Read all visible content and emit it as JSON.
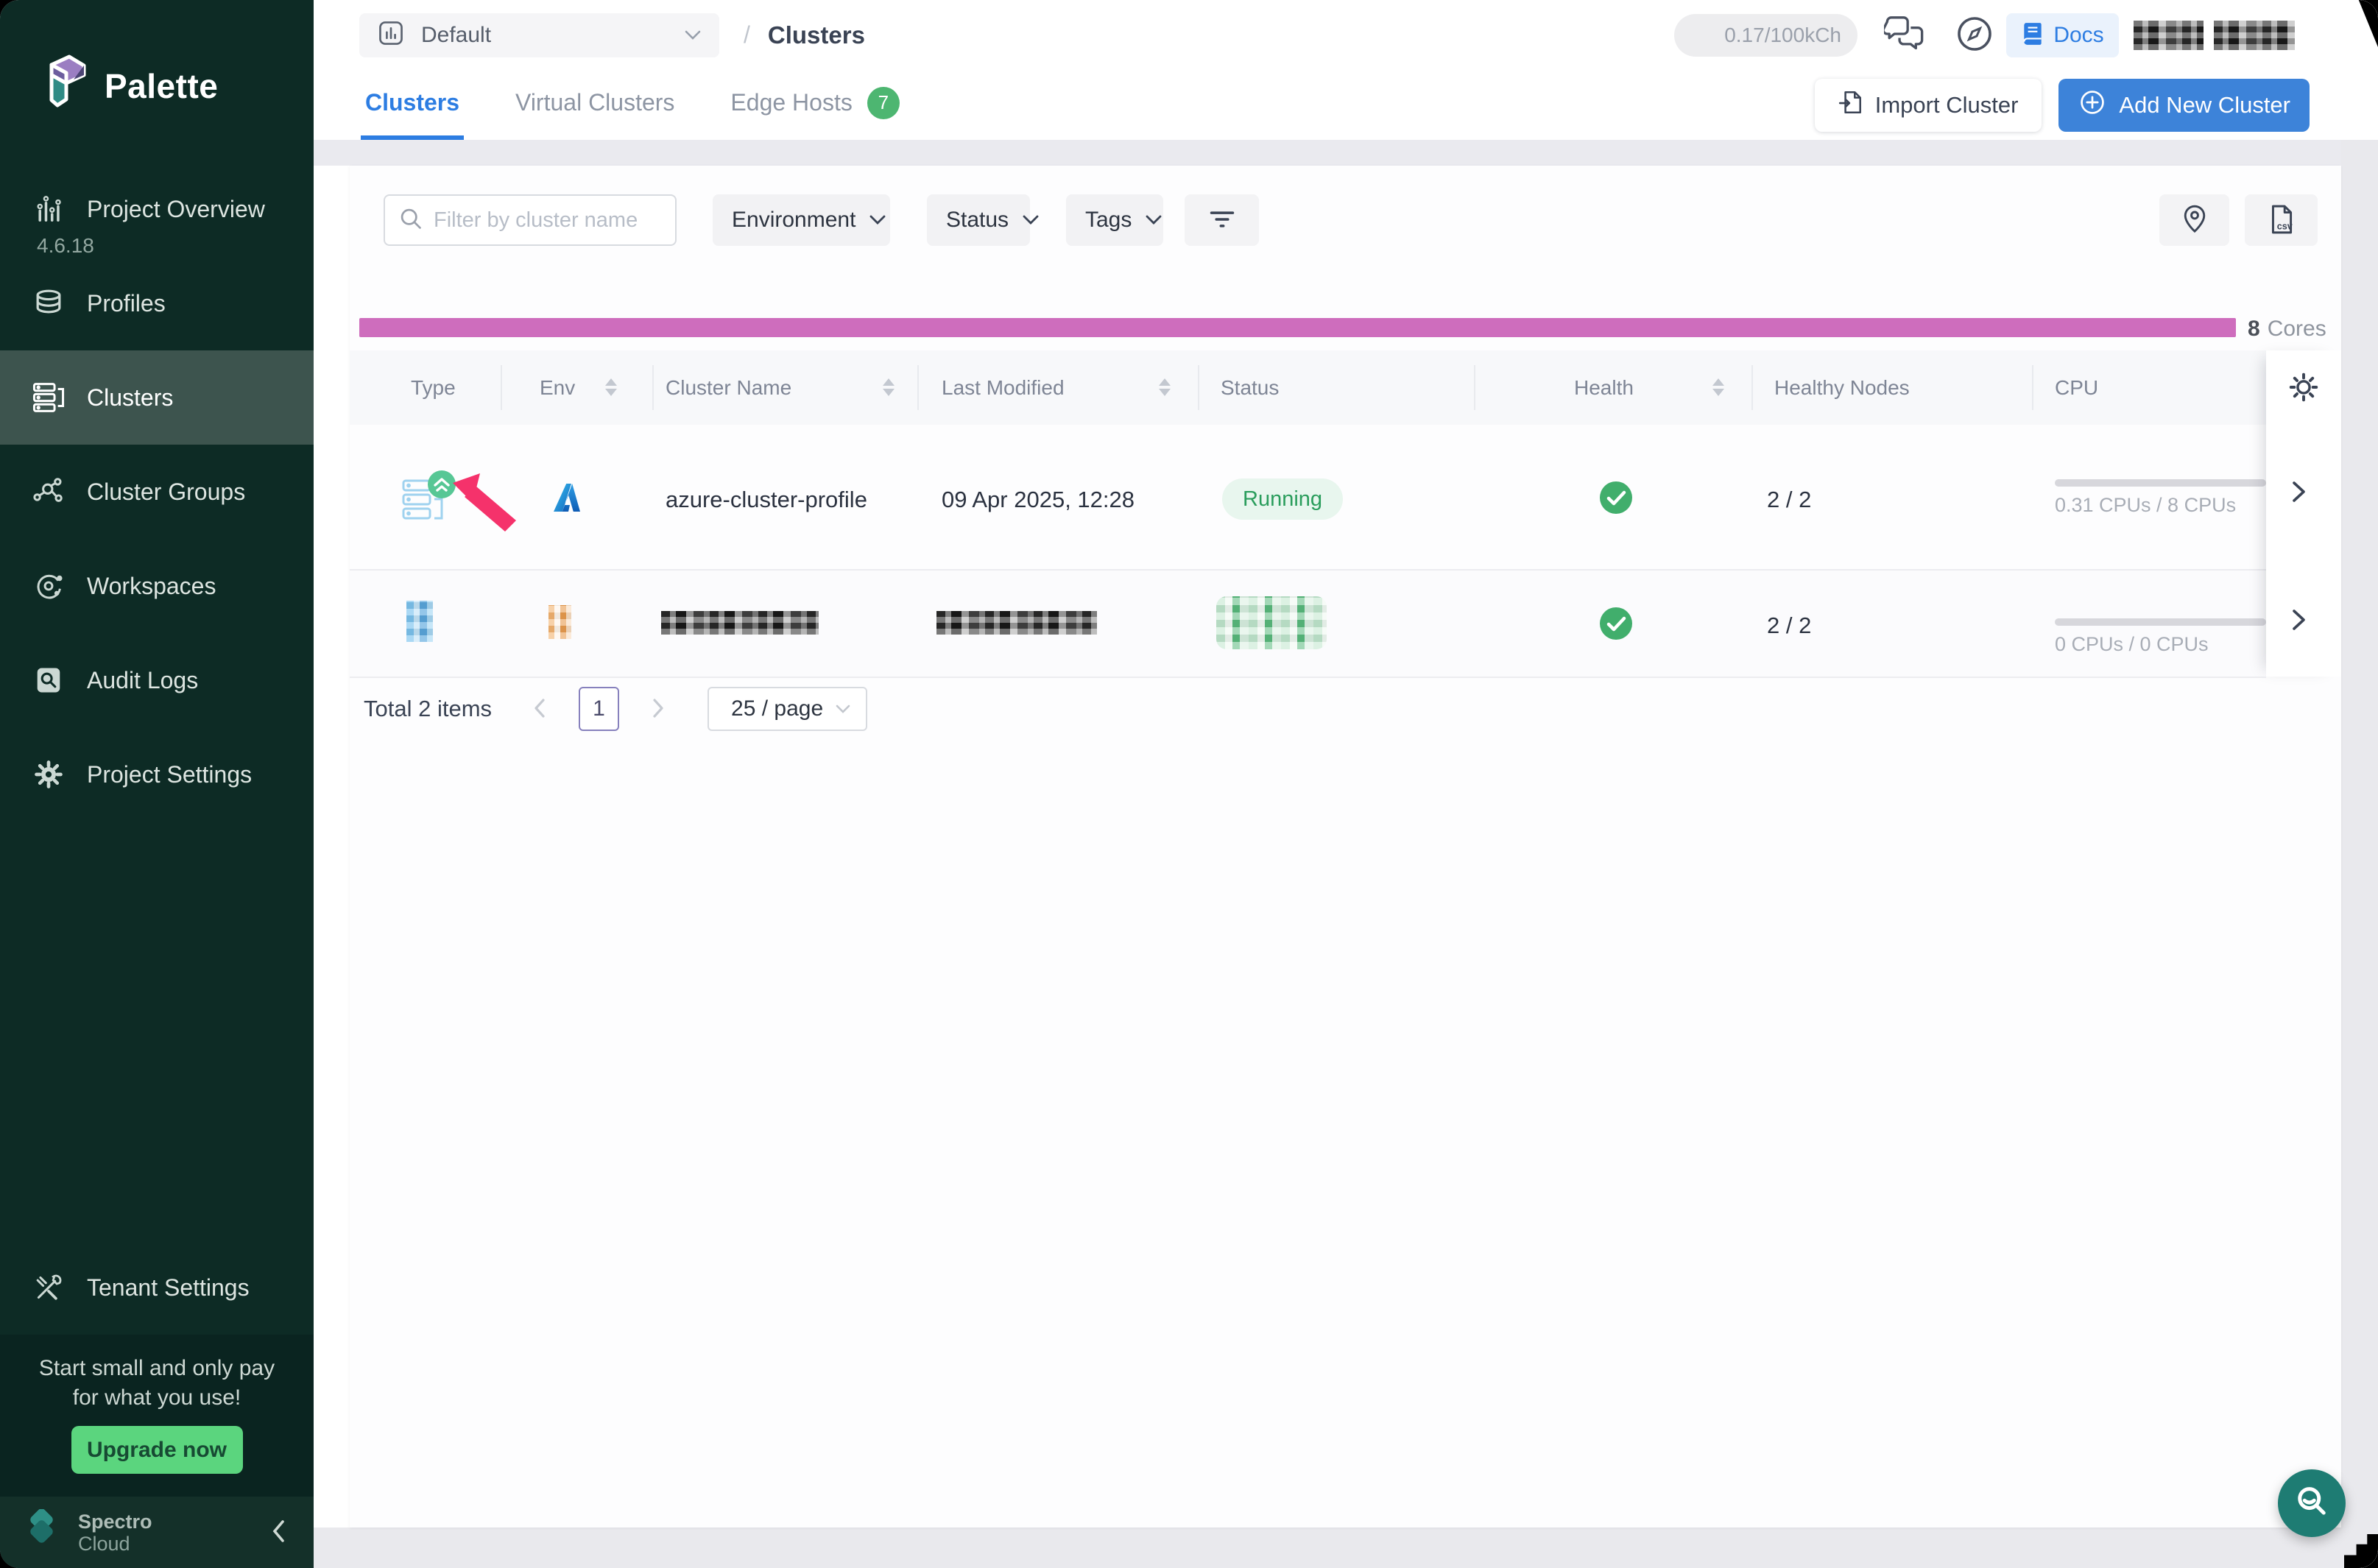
{
  "app": {
    "brand": "Palette",
    "version": "4.6.18"
  },
  "sidebar": {
    "items": [
      {
        "label": "Project Overview",
        "icon": "bar-chart"
      },
      {
        "label": "Profiles",
        "icon": "layers"
      },
      {
        "label": "Clusters",
        "icon": "server-list",
        "active": true
      },
      {
        "label": "Cluster Groups",
        "icon": "node-graph"
      },
      {
        "label": "Workspaces",
        "icon": "orbit"
      },
      {
        "label": "Audit Logs",
        "icon": "doc-search"
      },
      {
        "label": "Project Settings",
        "icon": "gear"
      }
    ],
    "tenant_settings": {
      "label": "Tenant Settings",
      "icon": "tools"
    },
    "promo": {
      "line1": "Start small and only pay",
      "line2": "for what you use!",
      "cta_label": "Upgrade now"
    },
    "footer": {
      "brand_line1": "Spectro",
      "brand_line2": "Cloud"
    }
  },
  "topbar": {
    "project_selector": "Default",
    "breadcrumb_separator": "/",
    "page_title": "Clusters",
    "usage_pill": "0.17/100kCh",
    "docs_label": "Docs"
  },
  "tabs": [
    {
      "label": "Clusters",
      "active": true
    },
    {
      "label": "Virtual Clusters",
      "active": false
    },
    {
      "label": "Edge Hosts",
      "active": false,
      "badge": "7"
    }
  ],
  "actions": {
    "import_label": "Import Cluster",
    "add_label": "Add New Cluster"
  },
  "filters": {
    "search_placeholder": "Filter by cluster name",
    "environment_label": "Environment",
    "status_label": "Status",
    "tags_label": "Tags",
    "csv_icon_label": "csv"
  },
  "capacity": {
    "value": "8",
    "unit": "Cores"
  },
  "table": {
    "columns": [
      {
        "label": "Type",
        "sortable": false
      },
      {
        "label": "Env",
        "sortable": true
      },
      {
        "label": "Cluster Name",
        "sortable": true
      },
      {
        "label": "Last Modified",
        "sortable": true
      },
      {
        "label": "Status",
        "sortable": false
      },
      {
        "label": "Health",
        "sortable": true
      },
      {
        "label": "Healthy Nodes",
        "sortable": false
      },
      {
        "label": "CPU",
        "sortable": false
      }
    ],
    "rows": [
      {
        "type": "cluster-upgrade-available",
        "env": "azure",
        "name": "azure-cluster-profile",
        "last_modified": "09 Apr 2025, 12:28",
        "status": "Running",
        "health": "healthy",
        "healthy_nodes": "2 / 2",
        "cpu_label": "0.31 CPUs / 8 CPUs",
        "cpu_pct": 4
      },
      {
        "redacted": true,
        "health": "healthy",
        "healthy_nodes": "2 / 2",
        "cpu_label": "0 CPUs / 0 CPUs",
        "cpu_pct": 0
      }
    ]
  },
  "pagination": {
    "total_label": "Total 2 items",
    "current_page": "1",
    "page_size": "25 / page"
  },
  "colors": {
    "accent_blue": "#2D7DE2",
    "bar_pink": "#CE6DBD",
    "success_green": "#41AE6C",
    "running_green": "#2A9D5C",
    "badge_green": "#4DB671",
    "upgrade_green": "#5BD57E",
    "sidebar_bg": "#0D2B25",
    "teal_fab": "#1E7C73",
    "annotation_pink": "#F5326B"
  }
}
